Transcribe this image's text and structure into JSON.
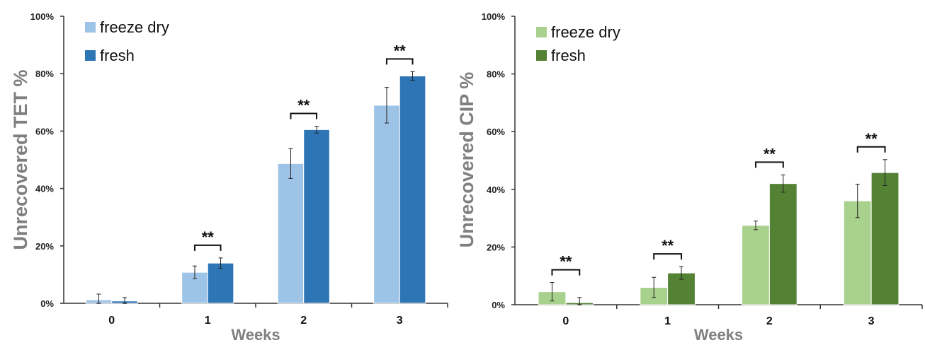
{
  "chart_data": [
    {
      "type": "bar",
      "categories": [
        "0",
        "1",
        "2",
        "3"
      ],
      "xlabel": "Weeks",
      "ylabel": "Unrecovered TET %",
      "ylim": [
        0,
        100
      ],
      "yticks": [
        "0%",
        "20%",
        "40%",
        "60%",
        "80%",
        "100%"
      ],
      "legend_position": "top-left",
      "series": [
        {
          "name": "freeze dry",
          "color": "#9dc3e6",
          "values": [
            1.2,
            10.8,
            48.7,
            69.0
          ],
          "errors": [
            2.0,
            2.2,
            5.2,
            6.2
          ]
        },
        {
          "name": "fresh",
          "color": "#2e75b6",
          "values": [
            0.8,
            14.0,
            60.5,
            79.2
          ],
          "errors": [
            1.2,
            1.8,
            1.2,
            1.5
          ]
        }
      ],
      "significance": [
        {
          "category": "1",
          "label": "**"
        },
        {
          "category": "2",
          "label": "**"
        },
        {
          "category": "3",
          "label": "**"
        }
      ]
    },
    {
      "type": "bar",
      "categories": [
        "0",
        "1",
        "2",
        "3"
      ],
      "xlabel": "Weeks",
      "ylabel": "Unrecovered CIP %",
      "ylim": [
        0,
        100
      ],
      "yticks": [
        "0%",
        "20%",
        "40%",
        "60%",
        "80%",
        "100%"
      ],
      "legend_position": "top-left",
      "series": [
        {
          "name": "freeze dry",
          "color": "#a9d18e",
          "values": [
            4.5,
            6.0,
            27.5,
            36.0
          ],
          "errors": [
            3.2,
            3.5,
            1.5,
            5.8
          ]
        },
        {
          "name": "fresh",
          "color": "#548235",
          "values": [
            0.7,
            11.0,
            42.0,
            45.8
          ],
          "errors": [
            1.8,
            2.2,
            3.0,
            4.5
          ]
        }
      ],
      "significance": [
        {
          "category": "0",
          "label": "**"
        },
        {
          "category": "1",
          "label": "**"
        },
        {
          "category": "2",
          "label": "**"
        },
        {
          "category": "3",
          "label": "**"
        }
      ]
    }
  ]
}
